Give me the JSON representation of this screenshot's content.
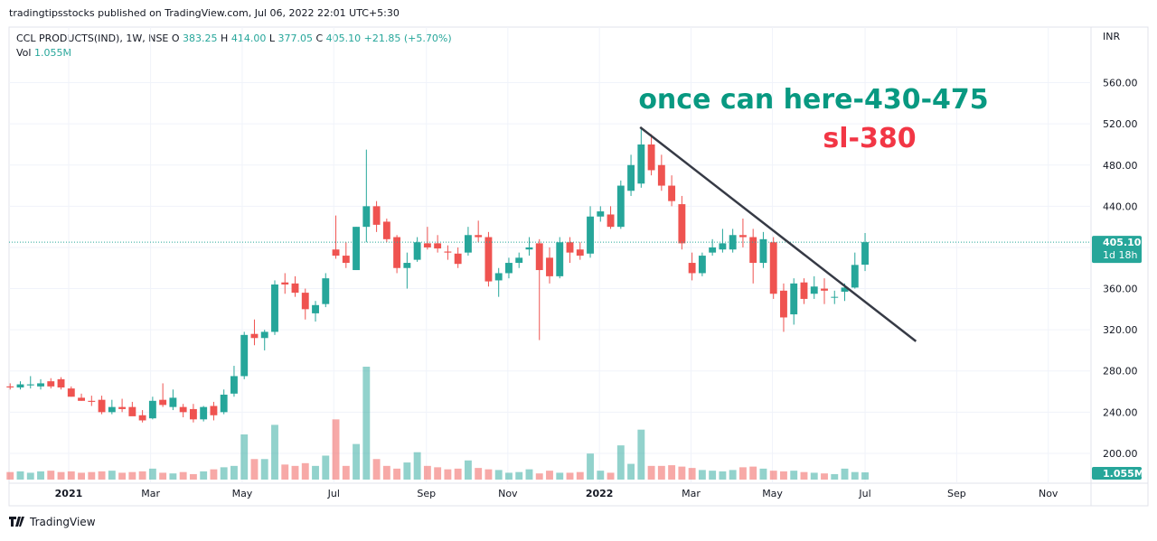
{
  "page": {
    "published": "tradingtipsstocks published on TradingView.com, Jul 06, 2022 22:01 UTC+5:30",
    "brand": "TradingView"
  },
  "chart_data": {
    "type": "candlestick",
    "symbol": "CCL PRODUCTS(IND), 1W, NSE",
    "ohlc": [
      {
        "key": "O",
        "value": "383.25"
      },
      {
        "key": "H",
        "value": "414.00"
      },
      {
        "key": "L",
        "value": "377.05"
      },
      {
        "key": "C",
        "value": "405.10"
      }
    ],
    "change": "+21.85 (+5.70%)",
    "volume_key": "Vol",
    "volume_text": "1.055M",
    "currency": "INR",
    "last_price_label": "405.10",
    "countdown": "1d 18h",
    "last_volume_label": "1.055M",
    "annotations": [
      {
        "text": "once can here-430-475",
        "color": "#089981"
      },
      {
        "text": "sl-380",
        "color": "#f23645"
      }
    ],
    "up_color": "#26a69a",
    "down_color": "#ef5350",
    "open": [
      265,
      264,
      266,
      265,
      270,
      272,
      263,
      254,
      251,
      252,
      240,
      245,
      245,
      237,
      234,
      252,
      245,
      245,
      243,
      233,
      246,
      240,
      258,
      275,
      316,
      312,
      318,
      366,
      365,
      356,
      336,
      345,
      398,
      392,
      378,
      420,
      440,
      425,
      410,
      380,
      388,
      404,
      404,
      396,
      394,
      395,
      412,
      410,
      368,
      375,
      385,
      398,
      404,
      390,
      372,
      405,
      398,
      394,
      430,
      432,
      420,
      455,
      462,
      500,
      480,
      460,
      442,
      385,
      375,
      395,
      398,
      398,
      412,
      410,
      385,
      405,
      358,
      335,
      366,
      355,
      360,
      352,
      357,
      361,
      383.25
    ],
    "high": [
      268,
      270,
      275,
      272,
      273,
      274,
      265,
      258,
      256,
      256,
      252,
      253,
      250,
      242,
      255,
      268,
      262,
      248,
      248,
      246,
      250,
      262,
      285,
      318,
      330,
      320,
      368,
      375,
      372,
      360,
      348,
      375,
      431,
      405,
      420,
      495,
      445,
      428,
      412,
      395,
      410,
      420,
      412,
      402,
      400,
      420,
      426,
      415,
      380,
      390,
      395,
      410,
      408,
      400,
      410,
      410,
      405,
      440,
      440,
      440,
      465,
      490,
      515,
      510,
      490,
      470,
      450,
      395,
      395,
      408,
      418,
      418,
      428,
      418,
      415,
      410,
      365,
      370,
      370,
      372,
      370,
      358,
      365,
      395,
      414
    ],
    "low": [
      262,
      262,
      263,
      262,
      263,
      262,
      255,
      251,
      246,
      238,
      238,
      240,
      237,
      230,
      233,
      245,
      242,
      235,
      230,
      231,
      232,
      238,
      255,
      272,
      305,
      300,
      315,
      355,
      352,
      330,
      328,
      342,
      389,
      380,
      378,
      405,
      415,
      405,
      375,
      360,
      386,
      398,
      395,
      388,
      380,
      392,
      405,
      362,
      352,
      370,
      380,
      392,
      310,
      365,
      370,
      385,
      388,
      390,
      425,
      418,
      418,
      450,
      458,
      470,
      455,
      440,
      398,
      368,
      372,
      392,
      395,
      395,
      400,
      365,
      380,
      350,
      318,
      325,
      345,
      350,
      345,
      345,
      348,
      360,
      377.05
    ],
    "close": [
      264,
      267,
      267,
      268,
      265,
      264,
      255,
      251,
      250,
      240,
      245,
      243,
      236,
      232,
      251,
      247,
      254,
      240,
      233,
      245,
      237,
      257,
      275,
      315,
      312,
      318,
      364,
      364,
      356,
      340,
      344,
      370,
      392,
      385,
      420,
      440,
      422,
      408,
      380,
      385,
      405,
      400,
      399,
      395,
      384,
      412,
      410,
      367,
      375,
      385,
      390,
      400,
      378,
      372,
      405,
      395,
      392,
      430,
      435,
      420,
      460,
      480,
      500,
      475,
      460,
      445,
      404,
      375,
      392,
      400,
      404,
      412,
      410,
      385,
      408,
      355,
      332,
      365,
      350,
      362,
      358,
      352,
      361,
      383,
      405.1
    ],
    "volume": [
      1.1,
      1.2,
      1.0,
      1.2,
      1.3,
      1.1,
      1.2,
      1.0,
      1.1,
      1.2,
      1.3,
      1.0,
      1.1,
      1.2,
      1.6,
      1.0,
      0.9,
      1.1,
      0.8,
      1.2,
      1.5,
      1.8,
      2.0,
      6.6,
      3.0,
      3.0,
      8.0,
      2.2,
      2.0,
      2.4,
      2.0,
      3.5,
      8.8,
      2.0,
      5.2,
      16.5,
      3.0,
      2.0,
      1.6,
      2.5,
      4.0,
      2.0,
      1.8,
      1.5,
      1.6,
      2.8,
      1.7,
      1.5,
      1.4,
      1.0,
      1.1,
      1.5,
      0.9,
      1.3,
      1.0,
      1.0,
      1.1,
      3.8,
      1.3,
      1.0,
      5.0,
      2.3,
      7.3,
      2.0,
      2.0,
      2.1,
      1.9,
      1.7,
      1.4,
      1.3,
      1.2,
      1.4,
      1.8,
      1.9,
      1.6,
      1.3,
      1.2,
      1.3,
      1.1,
      1.0,
      0.9,
      0.8,
      1.6,
      1.1,
      1.055
    ],
    "trendline": {
      "x": [
        61.9,
        89.0
      ],
      "y": [
        516.7,
        308.8
      ],
      "color": "#363a45"
    },
    "xlim": [
      -0.11,
      106.2
    ],
    "xticks": [
      {
        "value": 5.75,
        "label": "2021"
      },
      {
        "value": 13.8,
        "label": "Mar"
      },
      {
        "value": 22.8,
        "label": "May"
      },
      {
        "value": 31.8,
        "label": "Jul"
      },
      {
        "value": 40.9,
        "label": "Sep"
      },
      {
        "value": 48.9,
        "label": "Nov"
      },
      {
        "value": 57.9,
        "label": "2022"
      },
      {
        "value": 66.9,
        "label": "Mar"
      },
      {
        "value": 74.9,
        "label": "May"
      },
      {
        "value": 84.0,
        "label": "Jul"
      },
      {
        "value": 93.0,
        "label": "Sep"
      },
      {
        "value": 102.0,
        "label": "Nov"
      }
    ],
    "ylim": [
      171,
      614
    ],
    "yticks": [
      {
        "value": 200,
        "label": "200.00"
      },
      {
        "value": 240,
        "label": "240.00"
      },
      {
        "value": 280,
        "label": "280.00"
      },
      {
        "value": 320,
        "label": "320.00"
      },
      {
        "value": 360,
        "label": "360.00"
      },
      {
        "value": 400,
        "label": "400.00"
      },
      {
        "value": 440,
        "label": "440.00"
      },
      {
        "value": 480,
        "label": "480.00"
      },
      {
        "value": 520,
        "label": "520.00"
      },
      {
        "value": 560,
        "label": "560.00"
      }
    ],
    "grid": true
  }
}
